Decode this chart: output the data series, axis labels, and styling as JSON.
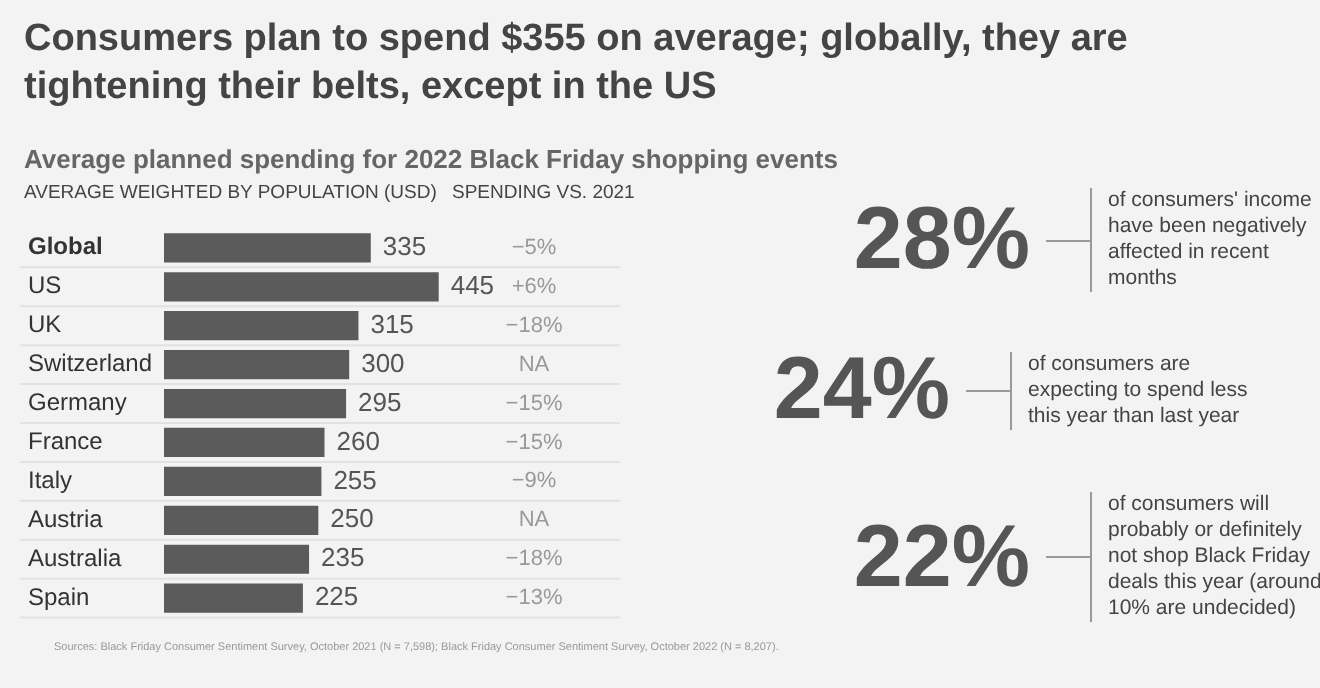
{
  "chart_data": {
    "type": "bar",
    "orientation": "horizontal",
    "title": "Consumers plan to spend $355 on average; globally, they are tightening their belts, except in the US",
    "subtitle": "Average planned spending for 2022 Black Friday shopping events",
    "xlabel": "AVERAGE WEIGHTED BY POPULATION (USD)",
    "categories": [
      "Global",
      "US",
      "UK",
      "Switzerland",
      "Germany",
      "France",
      "Italy",
      "Austria",
      "Australia",
      "Spain"
    ],
    "values": [
      335,
      445,
      315,
      300,
      295,
      260,
      255,
      250,
      235,
      225
    ],
    "color": "#5b5b5b",
    "data_labels": true,
    "legend": false,
    "grid": false,
    "annotations": [
      "SPENDING VS. 2021",
      "−5%",
      "+6%",
      "−18%",
      "NA",
      "−15%",
      "−15%",
      "−9%",
      "NA",
      "−18%",
      "−13%",
      "28%",
      "of consumers' income have been negatively affected in recent months",
      "24%",
      "of consumers are expecting to spend less this year than last year",
      "22%",
      "of consumers will probably or definitely not shop Black Friday deals this year (around 10% are undecided)",
      "Sources: Black Friday Consumer Sentiment Survey, October 2021 (N = 7,598); Black Friday Consumer Sentiment Survey, October 2022 (N = 8,207)."
    ]
  }
}
